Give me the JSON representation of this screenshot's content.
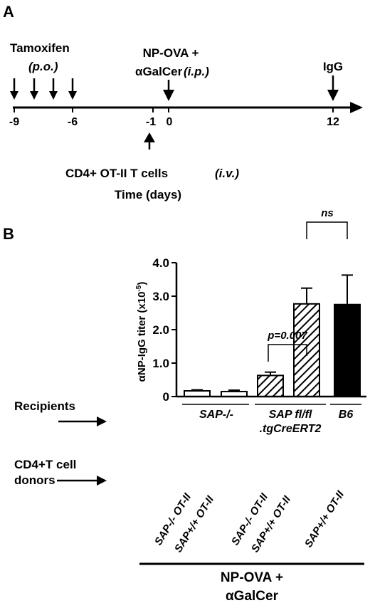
{
  "panel_a": {
    "label": "A",
    "tamoxifen_label": "Tamoxifen",
    "tamoxifen_route": "(p.o.)",
    "npova_label_1": "NP-OVA +",
    "npova_label_2": "αGalCer",
    "npova_route": "(i.p.)",
    "igg_label": "IgG",
    "cd4_label": "CD4+ OT-II T cells",
    "cd4_route": "(i.v.)",
    "axis_label": "Time (days)",
    "tick_labels": [
      "-9",
      "-6",
      "-1",
      "0",
      "12"
    ]
  },
  "panel_b": {
    "label": "B",
    "recipients_label": "Recipients",
    "donors_label_1": "CD4+T cell",
    "donors_label_2": "donors",
    "recipient_groups": [
      "SAP-/-",
      "SAP fl/fl",
      ".tgCreERT2",
      "B6"
    ],
    "donor_labels": [
      "SAP-/- OT-II",
      "SAP+/+ OT-II",
      "SAP-/- OT-II",
      "SAP+/+ OT-II",
      "SAP+/+ OT-II"
    ],
    "treatment_label_1": "NP-OVA +",
    "treatment_label_2": "αGalCer",
    "annotations": {
      "pval": "p=0.007",
      "ns": "ns"
    }
  },
  "chart_data": {
    "type": "bar",
    "ylabel": "αNP-IgG titer (x10",
    "ylabel_exp": "-5",
    "ylabel_close": ")",
    "ylim": [
      0,
      4.0
    ],
    "yticks": [
      "0",
      "1.0",
      "2.0",
      "3.0",
      "4.0"
    ],
    "bars": [
      {
        "value": 0.17,
        "error": 0.03,
        "fill": "white"
      },
      {
        "value": 0.15,
        "error": 0.04,
        "fill": "white"
      },
      {
        "value": 0.63,
        "error": 0.1,
        "fill": "hatched"
      },
      {
        "value": 2.77,
        "error": 0.47,
        "fill": "hatched"
      },
      {
        "value": 2.75,
        "error": 0.88,
        "fill": "black"
      }
    ]
  }
}
